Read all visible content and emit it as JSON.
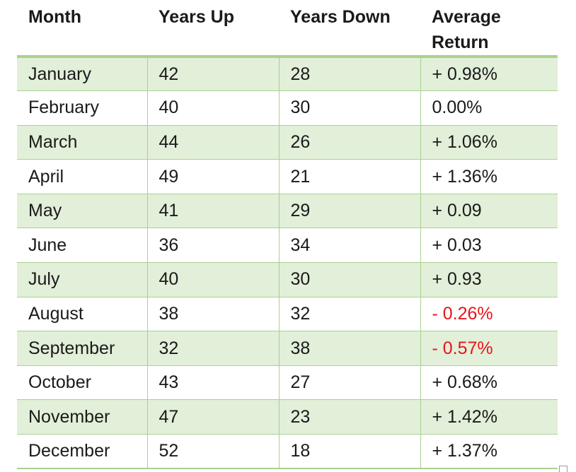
{
  "table": {
    "headers": [
      "Month",
      "Years Up",
      "Years Down",
      "Average Return"
    ],
    "header_last_line1": "Average",
    "header_last_line2": "Return",
    "rows": [
      {
        "month": "January",
        "up": "42",
        "down": "28",
        "ret": "+ 0.98%",
        "negative": false
      },
      {
        "month": "February",
        "up": "40",
        "down": "30",
        "ret": "0.00%",
        "negative": false
      },
      {
        "month": "March",
        "up": "44",
        "down": "26",
        "ret": "+ 1.06%",
        "negative": false
      },
      {
        "month": "April",
        "up": "49",
        "down": "21",
        "ret": "+ 1.36%",
        "negative": false
      },
      {
        "month": "May",
        "up": "41",
        "down": "29",
        "ret": "+ 0.09",
        "negative": false
      },
      {
        "month": "June",
        "up": "36",
        "down": "34",
        "ret": "+ 0.03",
        "negative": false
      },
      {
        "month": "July",
        "up": "40",
        "down": "30",
        "ret": "+ 0.93",
        "negative": false
      },
      {
        "month": "August",
        "up": "38",
        "down": "32",
        "ret": "- 0.26%",
        "negative": true
      },
      {
        "month": "September",
        "up": "32",
        "down": "38",
        "ret": "- 0.57%",
        "negative": true
      },
      {
        "month": "October",
        "up": "43",
        "down": "27",
        "ret": "+ 0.68%",
        "negative": false
      },
      {
        "month": "November",
        "up": "47",
        "down": "23",
        "ret": "+ 1.42%",
        "negative": false
      },
      {
        "month": "December",
        "up": "52",
        "down": "18",
        "ret": "+ 1.37%",
        "negative": false
      }
    ]
  },
  "colors": {
    "accent_border": "#a9d18e",
    "row_shade": "#e2efd9",
    "negative_text": "#e8141b"
  }
}
